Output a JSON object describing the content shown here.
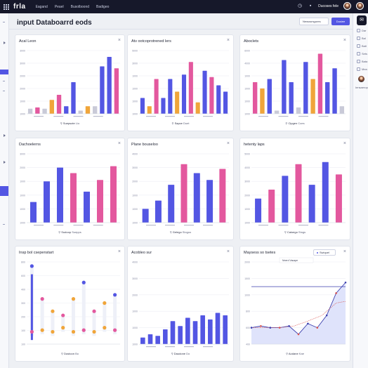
{
  "app": {
    "brand": "frla",
    "nav": [
      "Eagand",
      "Peael",
      "Busolboond",
      "Badigeo"
    ],
    "header_status_label": "Ducoses fele"
  },
  "page": {
    "title": "input Databoarrd eods",
    "select_label": "Newosmgures",
    "action_label": "Dusiee"
  },
  "right_panel": {
    "items": [
      "Dar",
      "Bal",
      "Bati",
      "Sets",
      "Bata",
      "Mea"
    ],
    "user_label": "Iensaerop"
  },
  "colors": {
    "primary": "#5356e3",
    "accent": "#e3589e",
    "warning": "#f0a53a",
    "muted": "#c9cad8",
    "topbar": "#16182a"
  },
  "cards": [
    {
      "title": "Acal Leon",
      "footer_icon": "Y",
      "footer_title": "Suepsote",
      "footer_sub": "Lio"
    },
    {
      "title": "Atv ootcoprotrened lers",
      "footer_icon": "Y",
      "footer_title": "Sapce",
      "footer_sub": "Duet"
    },
    {
      "title": "Aboclets",
      "footer_icon": "Y",
      "footer_title": "Cipgen",
      "footer_sub": "Coes"
    },
    {
      "title": "Dachoelerns",
      "footer_icon": "",
      "footer_title": "Sudoop",
      "footer_sub": "Suepps"
    },
    {
      "title": "Plane bouseloo",
      "footer_icon": "",
      "footer_title": "Gelego",
      "footer_sub": "Slogoo"
    },
    {
      "title": "hetenty laps",
      "footer_icon": "",
      "footer_title": "Caloego",
      "footer_sub": "Stogs"
    },
    {
      "title": "Insp bol csepenstart",
      "footer_icon": "",
      "footer_title": "Dustoon",
      "footer_sub": "Bo"
    },
    {
      "title": "Acobleo sur",
      "footer_icon": "",
      "footer_title": "Daudone",
      "footer_sub": "Do"
    },
    {
      "title": "Maysess so tsetes",
      "tag": "Swiquel",
      "footer_icon": "",
      "footer_title": "Aodane",
      "footer_sub": "Kae"
    }
  ],
  "chart_data": [
    {
      "type": "bar",
      "panel": 1,
      "yticks": [
        "3000",
        "3000",
        "2000",
        "2000",
        "1000",
        "1000"
      ],
      "series": [
        {
          "color": "primary",
          "values": [
            0,
            0,
            0,
            0,
            0,
            0,
            0,
            25,
            0,
            0,
            45,
            62,
            0
          ]
        },
        {
          "color": "accent",
          "values": [
            0,
            0,
            52,
            0,
            0,
            0,
            0,
            0,
            0,
            0,
            0,
            0,
            56
          ]
        },
        {
          "color": "warning",
          "values": [
            0,
            0,
            0,
            12,
            0,
            12,
            0,
            0,
            0,
            0,
            0,
            0,
            0
          ]
        },
        {
          "color": "muted",
          "values": [
            0,
            0,
            0,
            0,
            0,
            0,
            0,
            0,
            6,
            0,
            0,
            0,
            0
          ]
        }
      ]
    },
    {
      "type": "bar",
      "panel": 2,
      "yticks": [
        "5000",
        "3000",
        "1000",
        "1000",
        "1000",
        "1000"
      ]
    },
    {
      "type": "bar",
      "panel": 3,
      "yticks": [
        "6000",
        "4000",
        "1000",
        "1000",
        "1000",
        "1000"
      ]
    },
    {
      "type": "bar",
      "panel": 4,
      "yticks": [
        "3000",
        "2000",
        "1000",
        "1000",
        "1000",
        "1000"
      ]
    },
    {
      "type": "bar",
      "panel": 5,
      "yticks": [
        "4000",
        "3000",
        "2000",
        "1000",
        "1000",
        "1000"
      ]
    },
    {
      "type": "bar",
      "panel": 6,
      "yticks": [
        "5000",
        "4000",
        "3000",
        "2000",
        "1000",
        "1000"
      ]
    },
    {
      "type": "dot-column",
      "panel": 7,
      "yticks": [
        "800",
        "600",
        "400",
        "300",
        "200",
        "100",
        "100"
      ]
    },
    {
      "type": "bar",
      "panel": 8,
      "yticks": [
        "4000",
        "3000",
        "2000",
        "1000",
        "1000",
        "1000"
      ]
    },
    {
      "type": "line",
      "panel": 9,
      "legend": "Nnerd  Vacape",
      "yticks": [
        "2000",
        "1500",
        "1000",
        "800",
        "600",
        "400"
      ]
    }
  ]
}
